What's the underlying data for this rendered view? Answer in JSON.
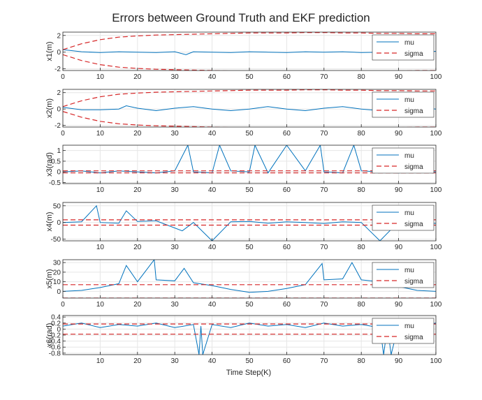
{
  "figure": {
    "title": "Errors between Ground Truth and EKF prediction",
    "xlabel": "Time Step(K)"
  },
  "chart_data": [
    {
      "type": "line",
      "ylabel": "x1(m)",
      "xlim": [
        0,
        100
      ],
      "ylim": [
        -2.2,
        2.4
      ],
      "xticks": [
        0,
        10,
        20,
        30,
        40,
        50,
        60,
        70,
        80,
        90,
        100
      ],
      "yticks": [
        -2,
        0,
        2
      ],
      "grid": true,
      "legend_position": "top-right",
      "series": [
        {
          "name": "mu",
          "style": "solid",
          "color": "#0072BD",
          "x": [
            0,
            5,
            10,
            15,
            20,
            25,
            30,
            33,
            35,
            40,
            45,
            50,
            55,
            60,
            65,
            70,
            75,
            80,
            85,
            90,
            95,
            100
          ],
          "y": [
            0.3,
            0.05,
            -0.05,
            0.05,
            0.0,
            -0.05,
            0.05,
            -0.3,
            0.05,
            0.0,
            -0.05,
            0.05,
            0.0,
            -0.05,
            0.05,
            0.0,
            0.05,
            -0.05,
            0.0,
            0.05,
            0.0,
            0.1
          ]
        },
        {
          "name": "sigma",
          "style": "dashed",
          "color": "#D62728",
          "mirrored": true,
          "x": [
            0,
            5,
            10,
            15,
            20,
            25,
            30,
            35,
            40,
            45,
            50,
            55,
            60,
            65,
            70,
            75,
            80,
            85,
            90,
            95,
            100
          ],
          "y": [
            0.3,
            1.0,
            1.5,
            1.8,
            1.95,
            2.05,
            2.1,
            2.15,
            2.2,
            2.25,
            2.3,
            2.3,
            2.3,
            2.35,
            2.35,
            2.3,
            2.3,
            2.25,
            2.25,
            2.2,
            2.2
          ]
        }
      ]
    },
    {
      "type": "line",
      "ylabel": "x2(m)",
      "xlim": [
        0,
        100
      ],
      "ylim": [
        -2.2,
        2.4
      ],
      "xticks": [
        0,
        10,
        20,
        30,
        40,
        50,
        60,
        70,
        80,
        90,
        100
      ],
      "yticks": [
        -2,
        0,
        2
      ],
      "grid": true,
      "legend_position": "top-right",
      "series": [
        {
          "name": "mu",
          "style": "solid",
          "color": "#0072BD",
          "x": [
            0,
            5,
            10,
            15,
            17,
            20,
            25,
            30,
            35,
            40,
            45,
            50,
            55,
            60,
            65,
            70,
            75,
            80,
            85,
            90,
            95,
            100
          ],
          "y": [
            0.2,
            -0.1,
            -0.1,
            0.0,
            0.4,
            0.1,
            -0.2,
            0.1,
            0.3,
            0.0,
            -0.2,
            0.0,
            0.3,
            0.0,
            -0.2,
            0.1,
            0.3,
            0.0,
            -0.2,
            0.1,
            0.2,
            0.0
          ]
        },
        {
          "name": "sigma",
          "style": "dashed",
          "color": "#D62728",
          "mirrored": true,
          "x": [
            0,
            5,
            10,
            15,
            20,
            25,
            30,
            35,
            40,
            45,
            50,
            55,
            60,
            65,
            70,
            75,
            80,
            85,
            90,
            95,
            100
          ],
          "y": [
            0.3,
            1.0,
            1.5,
            1.8,
            1.95,
            2.05,
            2.1,
            2.15,
            2.2,
            2.25,
            2.3,
            2.3,
            2.3,
            2.35,
            2.35,
            2.3,
            2.3,
            2.25,
            2.25,
            2.2,
            2.2
          ]
        }
      ]
    },
    {
      "type": "line",
      "ylabel": "x3(rad)",
      "xlim": [
        0,
        100
      ],
      "ylim": [
        -0.55,
        1.25
      ],
      "xticks": [
        10,
        20,
        30,
        40,
        50,
        60,
        70,
        80,
        90,
        100
      ],
      "yticks": [
        -0.5,
        0,
        0.5,
        1
      ],
      "ytick_labels": [
        "-0.5",
        "0",
        "0.5",
        "1"
      ],
      "grid": true,
      "legend_position": "top-right",
      "series": [
        {
          "name": "mu",
          "style": "solid",
          "color": "#0072BD",
          "x": [
            0,
            5,
            10,
            15,
            20,
            25,
            30,
            33.5,
            35,
            40,
            42,
            45,
            50,
            51.5,
            55,
            60,
            65,
            69,
            70,
            75,
            78,
            80,
            85,
            90,
            95,
            100
          ],
          "y": [
            0.0,
            0.05,
            -0.05,
            0.05,
            0.0,
            -0.05,
            0.05,
            1.25,
            0.0,
            -0.05,
            1.25,
            0.05,
            0.0,
            1.25,
            -0.05,
            1.25,
            0.05,
            1.25,
            0.0,
            -0.05,
            1.25,
            0.05,
            0.0,
            -0.05,
            0.05,
            0.0
          ]
        },
        {
          "name": "sigma",
          "style": "dashed",
          "color": "#D62728",
          "mirrored": true,
          "x": [
            0,
            100
          ],
          "y": [
            0.05,
            0.05
          ]
        }
      ]
    },
    {
      "type": "line",
      "ylabel": "x4(m)",
      "xlim": [
        0,
        100
      ],
      "ylim": [
        -55,
        60
      ],
      "xticks": [
        10,
        20,
        30,
        40,
        50,
        60,
        70,
        80,
        90,
        100
      ],
      "yticks": [
        -50,
        0,
        50
      ],
      "grid": true,
      "legend_position": "top-right",
      "series": [
        {
          "name": "mu",
          "style": "solid",
          "color": "#0072BD",
          "x": [
            0,
            5,
            9,
            10,
            15,
            17,
            20,
            25,
            32,
            35,
            40,
            45,
            50,
            55,
            60,
            65,
            70,
            75,
            80,
            85,
            90,
            95,
            100
          ],
          "y": [
            0,
            2,
            50,
            0,
            -2,
            35,
            3,
            5,
            -25,
            0,
            -55,
            2,
            3,
            -2,
            2,
            0,
            -3,
            2,
            0,
            -55,
            2,
            0,
            -3
          ]
        },
        {
          "name": "sigma",
          "style": "dashed",
          "color": "#D62728",
          "mirrored": true,
          "x": [
            0,
            100
          ],
          "y": [
            8,
            8
          ]
        }
      ]
    },
    {
      "type": "line",
      "ylabel": "x5(m)",
      "xlim": [
        0,
        100
      ],
      "ylim": [
        -7,
        33
      ],
      "xticks": [
        0,
        10,
        20,
        30,
        40,
        50,
        60,
        70,
        80,
        90,
        100
      ],
      "yticks": [
        0,
        10,
        20,
        30
      ],
      "grid": true,
      "legend_position": "top-right",
      "series": [
        {
          "name": "mu",
          "style": "solid",
          "color": "#0072BD",
          "x": [
            0,
            5,
            10,
            15,
            17,
            20,
            24.5,
            25,
            30,
            32.5,
            35,
            40,
            45,
            50,
            55,
            60,
            65,
            69.5,
            70,
            75,
            77.5,
            80,
            85,
            90,
            95,
            100
          ],
          "y": [
            0,
            1,
            4,
            8,
            27,
            10,
            33,
            12,
            11,
            24,
            9,
            6,
            2,
            -1,
            0,
            3,
            7,
            29,
            12,
            13,
            30,
            12,
            10,
            5,
            1,
            0
          ]
        },
        {
          "name": "sigma",
          "style": "dashed",
          "color": "#D62728",
          "mirrored": true,
          "x": [
            0,
            100
          ],
          "y": [
            7,
            7
          ]
        }
      ]
    },
    {
      "type": "line",
      "ylabel": "x6(rad)",
      "xlim": [
        0,
        100
      ],
      "ylim": [
        -0.85,
        0.45
      ],
      "xticks": [
        10,
        20,
        30,
        40,
        50,
        60,
        70,
        80,
        90,
        100
      ],
      "yticks": [
        -0.8,
        -0.6,
        -0.4,
        -0.2,
        0,
        0.2,
        0.4
      ],
      "ytick_labels": [
        "-0.8",
        "-0.6",
        "-0.4",
        "-0.2",
        "0",
        "0.2",
        "0.4"
      ],
      "grid": true,
      "legend_position": "top-right",
      "series": [
        {
          "name": "mu",
          "style": "solid",
          "color": "#0072BD",
          "x": [
            0,
            5,
            10,
            15,
            20,
            25,
            30,
            35,
            36.5,
            37,
            37.5,
            40,
            45,
            50,
            55,
            60,
            65,
            70,
            75,
            80,
            85,
            86,
            87,
            88,
            90,
            95,
            100
          ],
          "y": [
            0.1,
            0.2,
            0.05,
            0.15,
            0.1,
            0.2,
            0.05,
            0.15,
            -0.85,
            0.1,
            -0.85,
            0.15,
            0.05,
            0.2,
            0.1,
            0.15,
            0.05,
            0.2,
            0.1,
            0.15,
            0.05,
            -0.85,
            0.1,
            -0.85,
            0.15,
            0.1,
            0.2
          ]
        },
        {
          "name": "sigma",
          "style": "dashed",
          "color": "#D62728",
          "mirrored": true,
          "x": [
            0,
            100
          ],
          "y": [
            0.17,
            0.17
          ]
        }
      ]
    }
  ]
}
